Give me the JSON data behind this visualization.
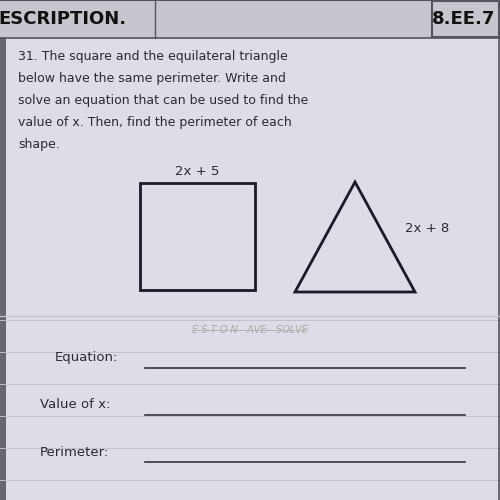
{
  "bg_color": "#b8bbc4",
  "paper_color": "#dddde8",
  "header_bg": "#c5c6ce",
  "header_left": "ESCRIPTION.",
  "header_right": "8.EE.7",
  "problem_text_lines": [
    "31. The square and the equilateral triangle",
    "below have the same perimeter. Write and",
    "solve an equation that can be used to find the",
    "value of x. Then, find the perimeter of each",
    "shape."
  ],
  "square_label": "2x + 5",
  "triangle_label": "2x + 8",
  "equation_label": "Equation:",
  "value_label": "Value of x:",
  "perimeter_label": "Perimeter:",
  "text_color": "#2a2a35",
  "header_text_color": "#111111",
  "line_color": "#333340",
  "shape_color": "#1a1a28",
  "ruled_line_color": "#c0c2cc",
  "faded_text_color": "#9090a0",
  "border_color": "#555560",
  "figsize": [
    5.0,
    5.0
  ],
  "dpi": 100
}
